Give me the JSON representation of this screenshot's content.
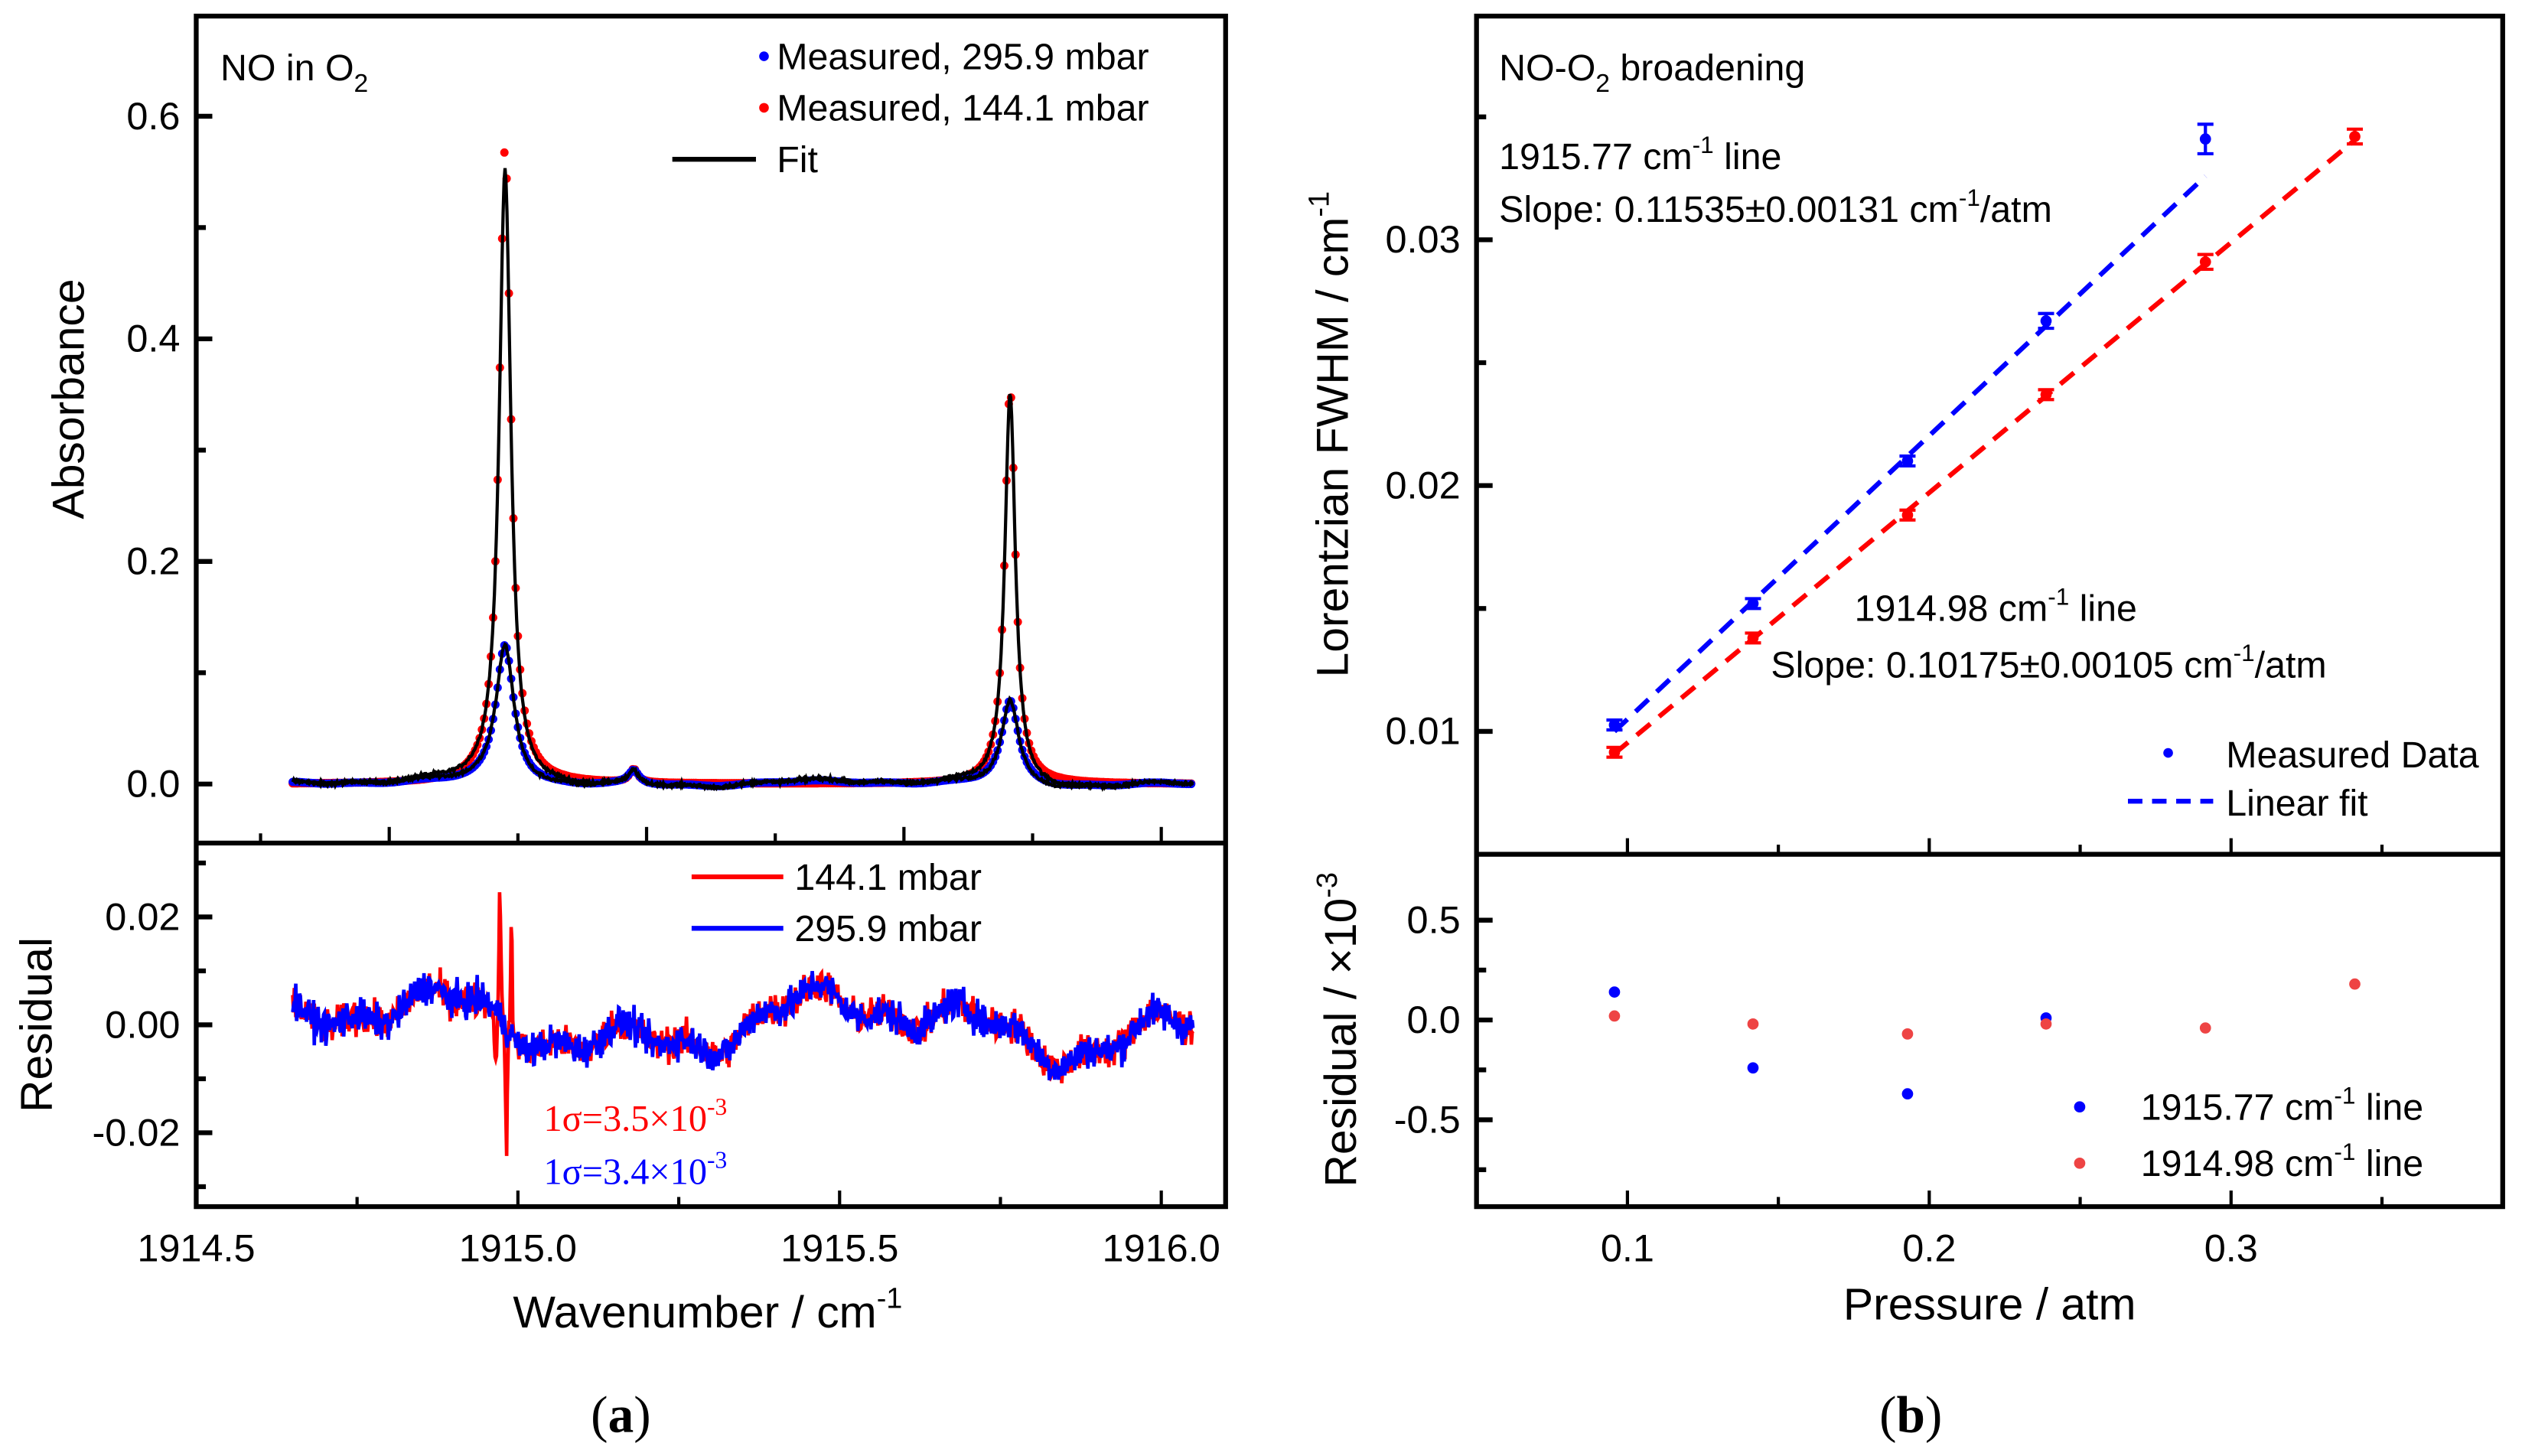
{
  "chart_data": [
    {
      "id": "a-top",
      "type": "scatter",
      "annotation": {
        "main": "NO in O",
        "sub": "2"
      },
      "xlabel": "",
      "ylabel": "Absorbance",
      "xlim": [
        1914.5,
        1916.1
      ],
      "ylim": [
        -0.053,
        0.69
      ],
      "yticks": [
        0.0,
        0.2,
        0.4,
        0.6
      ],
      "ytick_labels": [
        "0.0",
        "0.2",
        "0.4",
        "0.6"
      ],
      "x_range": [
        1914.65,
        1916.05
      ],
      "legend": [
        {
          "label": "Measured, 295.9 mbar",
          "color": "#0000ff",
          "marker": "dot"
        },
        {
          "label": "Measured, 144.1 mbar",
          "color": "#ff0000",
          "marker": "dot"
        },
        {
          "label": "Fit",
          "color": "#000000",
          "marker": "line"
        }
      ],
      "series": [
        {
          "name": "Measured, 144.1 mbar",
          "color": "#ff0000",
          "peaks": [
            {
              "center": 1914.98,
              "height": 0.572,
              "fwhm": 0.022
            },
            {
              "center": 1915.765,
              "height": 0.355,
              "fwhm": 0.02
            },
            {
              "center": 1915.18,
              "height": 0.012,
              "fwhm": 0.015
            }
          ]
        },
        {
          "name": "Measured, 295.9 mbar",
          "color": "#0000ff",
          "peaks": [
            {
              "center": 1914.98,
              "height": 0.125,
              "fwhm": 0.034
            },
            {
              "center": 1915.765,
              "height": 0.075,
              "fwhm": 0.032
            },
            {
              "center": 1915.18,
              "height": 0.012,
              "fwhm": 0.02
            }
          ]
        },
        {
          "name": "Fit",
          "color": "#000000",
          "peaks": [
            {
              "center": 1914.98,
              "height": 0.553,
              "fwhm": 0.022
            },
            {
              "center": 1915.765,
              "height": 0.35,
              "fwhm": 0.02
            },
            {
              "center": 1915.18,
              "height": 0.012,
              "fwhm": 0.015
            }
          ]
        }
      ]
    },
    {
      "id": "a-bottom",
      "type": "line",
      "xlabel": {
        "main": "Wavenumber / cm",
        "sup": "-1"
      },
      "ylabel": "Residual",
      "xlim": [
        1914.5,
        1916.1
      ],
      "ylim": [
        -0.0337,
        0.0337
      ],
      "xticks": [
        1914.5,
        1915.0,
        1915.5,
        1916.0
      ],
      "xtick_labels": [
        "1914.5",
        "1915.0",
        "1915.5",
        "1916.0"
      ],
      "yticks": [
        0.02,
        0.0,
        -0.02
      ],
      "ytick_labels": [
        "0.02",
        "0.00",
        "-0.02"
      ],
      "legend": [
        {
          "label": "144.1 mbar",
          "color": "#ff0000"
        },
        {
          "label": "295.9 mbar",
          "color": "#0000ff"
        }
      ],
      "series": [
        {
          "name": "144.1 mbar",
          "color": "#ff0000",
          "sigma": 0.0035
        },
        {
          "name": "295.9 mbar",
          "color": "#0000ff",
          "sigma": 0.0034
        }
      ],
      "annotations": [
        {
          "main": "1σ=3.5×10",
          "sup": "-3",
          "color": "#ff0000"
        },
        {
          "main": "1σ=3.4×10",
          "sup": "-3",
          "color": "#0000ff"
        }
      ]
    },
    {
      "id": "b-top",
      "type": "scatter",
      "title": {
        "main": "NO-O",
        "sub": "2",
        "rest": " broadening"
      },
      "ylabel": {
        "main": "Lorentzian FWHM / cm",
        "sup": "-1"
      },
      "xlim": [
        0.05,
        0.39
      ],
      "ylim": [
        0.005,
        0.0391
      ],
      "yticks": [
        0.01,
        0.02,
        0.03
      ],
      "ytick_labels": [
        "0.01",
        "0.02",
        "0.03"
      ],
      "series": [
        {
          "name": "1915.77 cm-1 line",
          "color": "#0000ff",
          "x": [
            0.0957,
            0.1416,
            0.1928,
            0.2387,
            0.2915
          ],
          "y": [
            0.01026,
            0.0152,
            0.021,
            0.0267,
            0.0341
          ],
          "err": [
            0.0002,
            0.0002,
            0.0002,
            0.0003,
            0.0006
          ],
          "fit": {
            "slope": 0.11535,
            "intercept": -0.00104,
            "x_range": [
              0.0957,
              0.2915
            ]
          }
        },
        {
          "name": "1914.98 cm-1 line",
          "color": "#ff0000",
          "x": [
            0.0957,
            0.1416,
            0.1928,
            0.2387,
            0.2915,
            0.341
          ],
          "y": [
            0.00915,
            0.0138,
            0.0188,
            0.0237,
            0.0291,
            0.0342
          ],
          "err": [
            0.0002,
            0.0002,
            0.0002,
            0.0002,
            0.0003,
            0.0003
          ],
          "fit": {
            "slope": 0.10175,
            "intercept": -0.00064,
            "x_range": [
              0.0957,
              0.341
            ]
          }
        }
      ],
      "annotations": [
        {
          "main": "1915.77 cm",
          "sup": "-1",
          "rest": " line",
          "color": "#0000ff"
        },
        {
          "main": "Slope: 0.11535±0.00131 cm",
          "sup": "-1",
          "rest": "/atm",
          "color": "#555555"
        },
        {
          "main": "1914.98 cm",
          "sup": "-1",
          "rest": " line",
          "color": "#ff0000"
        },
        {
          "main": "Slope: 0.10175±0.00105 cm",
          "sup": "-1",
          "rest": "/atm",
          "color": "#ff0000"
        }
      ],
      "legend": [
        {
          "label": "Measured Data",
          "color": "#0000ff",
          "marker": "dot"
        },
        {
          "label": "Linear fit",
          "color": "#0000ff",
          "marker": "dash"
        }
      ]
    },
    {
      "id": "b-bottom",
      "type": "scatter",
      "xlabel": "Pressure / atm",
      "ylabel": {
        "main": "Residual / ×10",
        "sup": "-3"
      },
      "xlim": [
        0.05,
        0.39
      ],
      "ylim": [
        -0.935,
        0.83
      ],
      "xticks": [
        0.1,
        0.2,
        0.3
      ],
      "xtick_labels": [
        "0.1",
        "0.2",
        "0.3"
      ],
      "yticks": [
        0.5,
        0.0,
        -0.5
      ],
      "ytick_labels": [
        "0.5",
        "0.0",
        "-0.5"
      ],
      "series": [
        {
          "name": "1915.77 cm-1 line",
          "color": "#0000ff",
          "x": [
            0.0957,
            0.1416,
            0.1928,
            0.2387
          ],
          "y": [
            0.14,
            -0.24,
            -0.37,
            0.01
          ]
        },
        {
          "name": "1914.98 cm-1 line",
          "color": "#ee4444",
          "x": [
            0.0957,
            0.1416,
            0.1928,
            0.2387,
            0.2915,
            0.341
          ],
          "y": [
            0.02,
            -0.02,
            -0.07,
            -0.02,
            -0.04,
            0.18
          ]
        }
      ],
      "legend": [
        {
          "main": "1915.77 cm",
          "sup": "-1",
          "rest": " line",
          "color": "#0000ff"
        },
        {
          "main": "1914.98 cm",
          "sup": "-1",
          "rest": " line",
          "color": "#ee4444"
        }
      ]
    }
  ],
  "panel_labels": {
    "a": {
      "open": "(",
      "letter": "a",
      "close": ")"
    },
    "b": {
      "open": "(",
      "letter": "b",
      "close": ")"
    }
  }
}
